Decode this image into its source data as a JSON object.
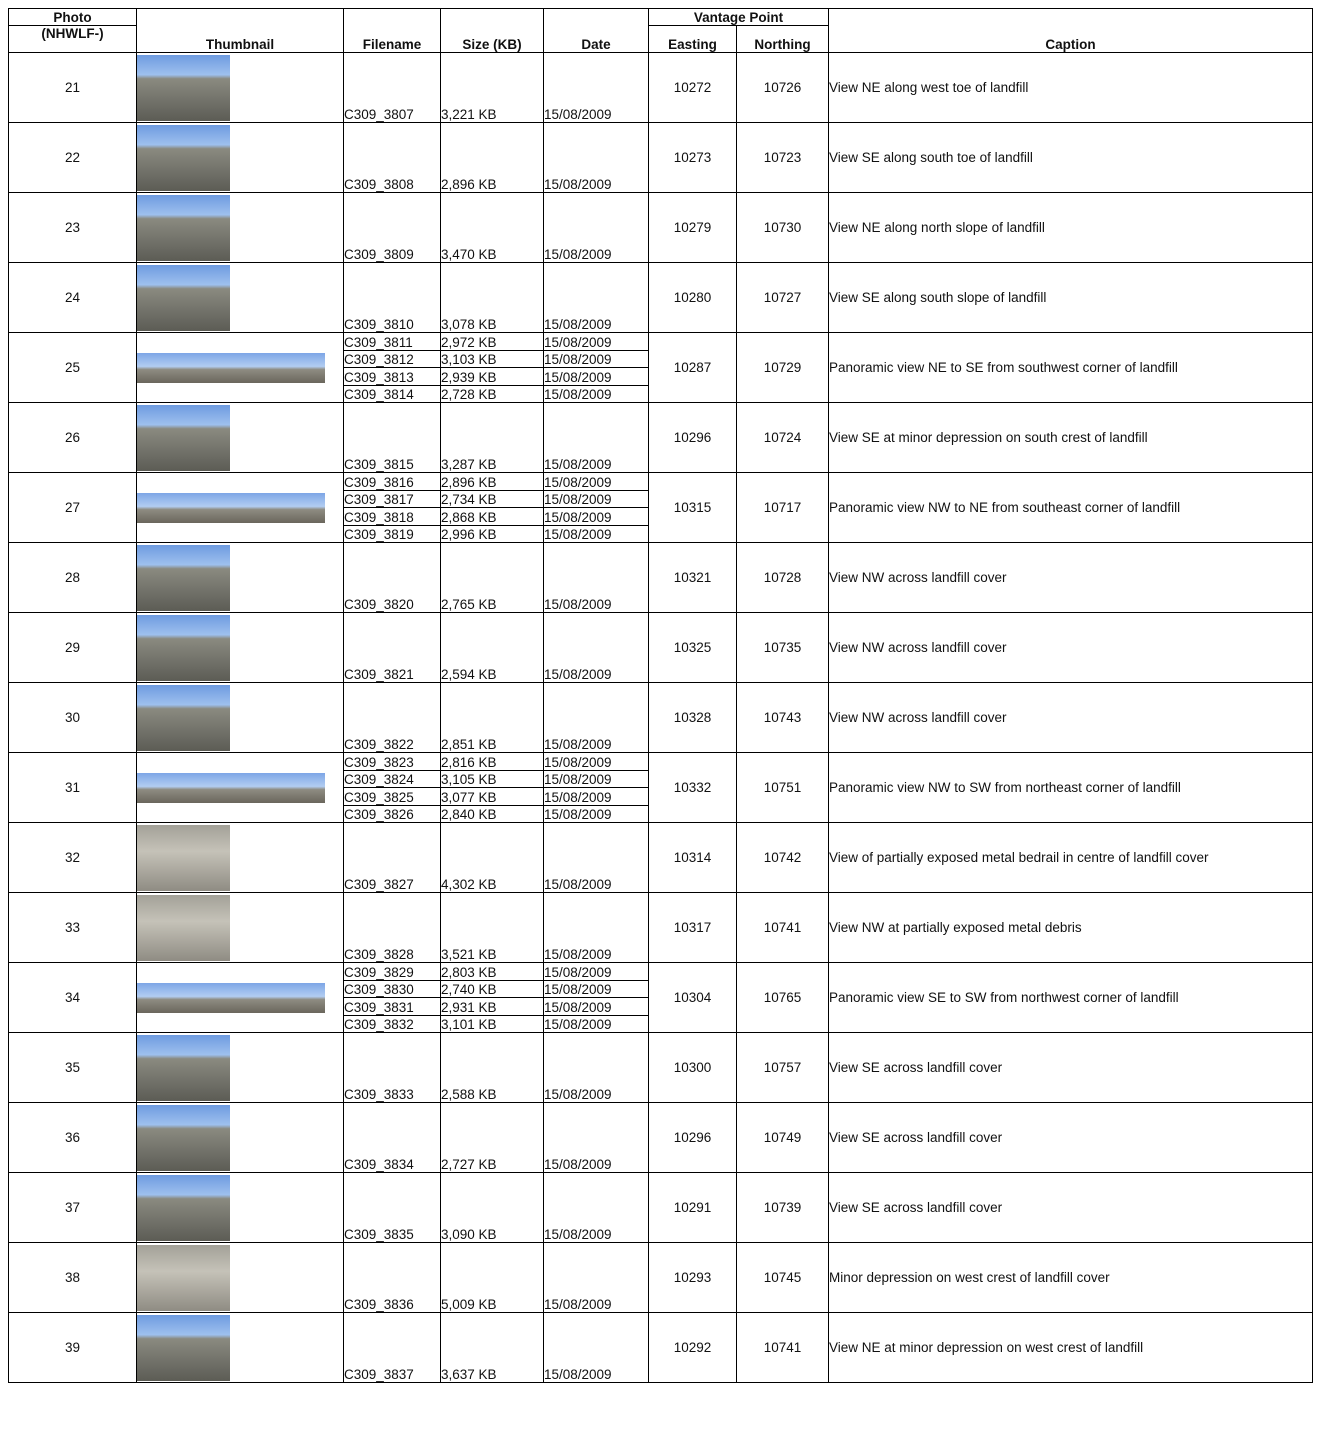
{
  "headers": {
    "photo": "Photo",
    "photo_sub": "(NHWLF-)",
    "thumbnail": "Thumbnail",
    "filename": "Filename",
    "size": "Size (KB)",
    "date": "Date",
    "vantage": "Vantage Point",
    "easting": "Easting",
    "northing": "Northing",
    "caption": "Caption"
  },
  "rows": [
    {
      "photo": "21",
      "thumb": "single",
      "files": [
        {
          "fn": "C309_3807",
          "size": "3,221 KB",
          "date": "15/08/2009"
        }
      ],
      "easting": "10272",
      "northing": "10726",
      "caption": "View NE along west toe of landfill"
    },
    {
      "photo": "22",
      "thumb": "single",
      "files": [
        {
          "fn": "C309_3808",
          "size": "2,896 KB",
          "date": "15/08/2009"
        }
      ],
      "easting": "10273",
      "northing": "10723",
      "caption": "View SE along south toe of landfill"
    },
    {
      "photo": "23",
      "thumb": "single",
      "files": [
        {
          "fn": "C309_3809",
          "size": "3,470 KB",
          "date": "15/08/2009"
        }
      ],
      "easting": "10279",
      "northing": "10730",
      "caption": "View NE along north slope of landfill"
    },
    {
      "photo": "24",
      "thumb": "single",
      "files": [
        {
          "fn": "C309_3810",
          "size": "3,078 KB",
          "date": "15/08/2009"
        }
      ],
      "easting": "10280",
      "northing": "10727",
      "caption": "View SE along south slope of landfill"
    },
    {
      "photo": "25",
      "thumb": "pano",
      "files": [
        {
          "fn": "C309_3811",
          "size": "2,972 KB",
          "date": "15/08/2009"
        },
        {
          "fn": "C309_3812",
          "size": "3,103 KB",
          "date": "15/08/2009"
        },
        {
          "fn": "C309_3813",
          "size": "2,939 KB",
          "date": "15/08/2009"
        },
        {
          "fn": "C309_3814",
          "size": "2,728 KB",
          "date": "15/08/2009"
        }
      ],
      "easting": "10287",
      "northing": "10729",
      "caption": "Panoramic view NE to SE from southwest corner of landfill"
    },
    {
      "photo": "26",
      "thumb": "single",
      "files": [
        {
          "fn": "C309_3815",
          "size": "3,287 KB",
          "date": "15/08/2009"
        }
      ],
      "easting": "10296",
      "northing": "10724",
      "caption": "View SE at minor depression on south crest of landfill"
    },
    {
      "photo": "27",
      "thumb": "pano",
      "files": [
        {
          "fn": "C309_3816",
          "size": "2,896 KB",
          "date": "15/08/2009"
        },
        {
          "fn": "C309_3817",
          "size": "2,734 KB",
          "date": "15/08/2009"
        },
        {
          "fn": "C309_3818",
          "size": "2,868 KB",
          "date": "15/08/2009"
        },
        {
          "fn": "C309_3819",
          "size": "2,996 KB",
          "date": "15/08/2009"
        }
      ],
      "easting": "10315",
      "northing": "10717",
      "caption": "Panoramic view NW to NE from southeast corner of landfill"
    },
    {
      "photo": "28",
      "thumb": "single",
      "files": [
        {
          "fn": "C309_3820",
          "size": "2,765 KB",
          "date": "15/08/2009"
        }
      ],
      "easting": "10321",
      "northing": "10728",
      "caption": "View NW across landfill cover"
    },
    {
      "photo": "29",
      "thumb": "single",
      "files": [
        {
          "fn": "C309_3821",
          "size": "2,594 KB",
          "date": "15/08/2009"
        }
      ],
      "easting": "10325",
      "northing": "10735",
      "caption": "View NW across landfill cover"
    },
    {
      "photo": "30",
      "thumb": "single",
      "files": [
        {
          "fn": "C309_3822",
          "size": "2,851 KB",
          "date": "15/08/2009"
        }
      ],
      "easting": "10328",
      "northing": "10743",
      "caption": "View NW across landfill cover"
    },
    {
      "photo": "31",
      "thumb": "pano",
      "files": [
        {
          "fn": "C309_3823",
          "size": "2,816 KB",
          "date": "15/08/2009"
        },
        {
          "fn": "C309_3824",
          "size": "3,105 KB",
          "date": "15/08/2009"
        },
        {
          "fn": "C309_3825",
          "size": "3,077 KB",
          "date": "15/08/2009"
        },
        {
          "fn": "C309_3826",
          "size": "2,840 KB",
          "date": "15/08/2009"
        }
      ],
      "easting": "10332",
      "northing": "10751",
      "caption": "Panoramic view NW to SW from northeast corner of landfill"
    },
    {
      "photo": "32",
      "thumb": "ground",
      "files": [
        {
          "fn": "C309_3827",
          "size": "4,302 KB",
          "date": "15/08/2009"
        }
      ],
      "easting": "10314",
      "northing": "10742",
      "caption": "View of partially exposed metal bedrail in centre of landfill cover"
    },
    {
      "photo": "33",
      "thumb": "ground",
      "files": [
        {
          "fn": "C309_3828",
          "size": "3,521 KB",
          "date": "15/08/2009"
        }
      ],
      "easting": "10317",
      "northing": "10741",
      "caption": "View NW at partially exposed metal debris"
    },
    {
      "photo": "34",
      "thumb": "pano",
      "files": [
        {
          "fn": "C309_3829",
          "size": "2,803 KB",
          "date": "15/08/2009"
        },
        {
          "fn": "C309_3830",
          "size": "2,740 KB",
          "date": "15/08/2009"
        },
        {
          "fn": "C309_3831",
          "size": "2,931 KB",
          "date": "15/08/2009"
        },
        {
          "fn": "C309_3832",
          "size": "3,101 KB",
          "date": "15/08/2009"
        }
      ],
      "easting": "10304",
      "northing": "10765",
      "caption": "Panoramic view SE to SW from northwest corner of landfill"
    },
    {
      "photo": "35",
      "thumb": "single",
      "files": [
        {
          "fn": "C309_3833",
          "size": "2,588 KB",
          "date": "15/08/2009"
        }
      ],
      "easting": "10300",
      "northing": "10757",
      "caption": "View SE across landfill cover"
    },
    {
      "photo": "36",
      "thumb": "single",
      "files": [
        {
          "fn": "C309_3834",
          "size": "2,727 KB",
          "date": "15/08/2009"
        }
      ],
      "easting": "10296",
      "northing": "10749",
      "caption": "View SE across landfill cover"
    },
    {
      "photo": "37",
      "thumb": "single",
      "files": [
        {
          "fn": "C309_3835",
          "size": "3,090 KB",
          "date": "15/08/2009"
        }
      ],
      "easting": "10291",
      "northing": "10739",
      "caption": "View SE across landfill cover"
    },
    {
      "photo": "38",
      "thumb": "ground",
      "files": [
        {
          "fn": "C309_3836",
          "size": "5,009 KB",
          "date": "15/08/2009"
        }
      ],
      "easting": "10293",
      "northing": "10745",
      "caption": "Minor depression on west crest of landfill cover"
    },
    {
      "photo": "39",
      "thumb": "single",
      "files": [
        {
          "fn": "C309_3837",
          "size": "3,637 KB",
          "date": "15/08/2009"
        }
      ],
      "easting": "10292",
      "northing": "10741",
      "caption": "View NE at minor depression on west crest of landfill"
    }
  ]
}
